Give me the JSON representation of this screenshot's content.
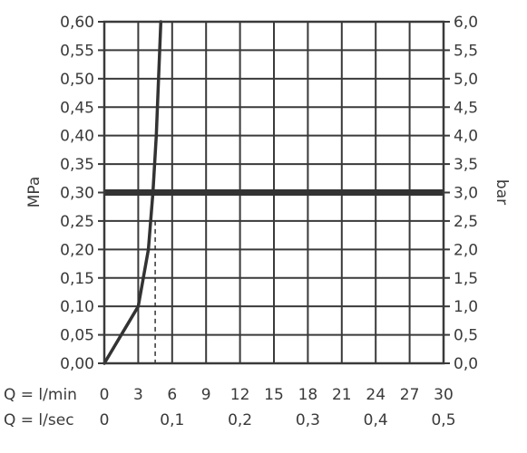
{
  "chart_data": {
    "type": "line",
    "title": "",
    "ylabel_left": "MPa",
    "ylabel_right": "bar",
    "x_row_labels": [
      "Q = l/min",
      "Q = l/sec"
    ],
    "x_lmin_ticks": [
      "0",
      "3",
      "6",
      "9",
      "12",
      "15",
      "18",
      "21",
      "24",
      "27",
      "30"
    ],
    "x_lsec_ticks": [
      "0",
      "0,1",
      "0,2",
      "0,3",
      "0,4",
      "0,5"
    ],
    "y_left_ticks": [
      "0,00",
      "0,05",
      "0,10",
      "0,15",
      "0,20",
      "0,25",
      "0,30",
      "0,35",
      "0,40",
      "0,45",
      "0,50",
      "0,55",
      "0,60"
    ],
    "y_right_ticks": [
      "0,0",
      "0,5",
      "1,0",
      "1,5",
      "2,0",
      "2,5",
      "3,0",
      "3,5",
      "4,0",
      "4,5",
      "5,0",
      "5,5",
      "6,0"
    ],
    "xlim": [
      0,
      30
    ],
    "ylim": [
      0,
      0.6
    ],
    "grid": true,
    "reference_line": {
      "y": 0.3
    },
    "marker_line": {
      "x": 4.5
    },
    "series": [
      {
        "x": [
          0,
          3.0,
          3.9,
          4.3,
          4.6,
          4.8,
          5.0
        ],
        "y": [
          0,
          0.1,
          0.2,
          0.3,
          0.4,
          0.5,
          0.6
        ]
      }
    ],
    "colors": {
      "line": "#333333",
      "grid": "#3a3a3a",
      "text": "#3a3a3a"
    }
  }
}
